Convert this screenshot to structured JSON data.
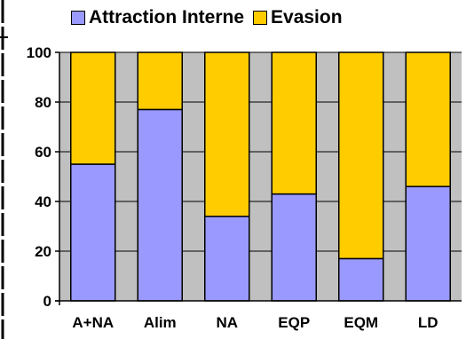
{
  "chart_data": {
    "type": "bar",
    "stacked": true,
    "categories": [
      "A+NA",
      "Alim",
      "NA",
      "EQP",
      "EQM",
      "LD"
    ],
    "series": [
      {
        "name": "Attraction Interne",
        "color": "#9999ff",
        "values": [
          55,
          77,
          34,
          43,
          17,
          46
        ]
      },
      {
        "name": "Evasion",
        "color": "#ffcc00",
        "values": [
          45,
          23,
          66,
          57,
          83,
          54
        ]
      }
    ],
    "ylim": [
      0,
      100
    ],
    "yticks": [
      0,
      20,
      40,
      60,
      80,
      100
    ],
    "grid": true,
    "legend": "top"
  }
}
